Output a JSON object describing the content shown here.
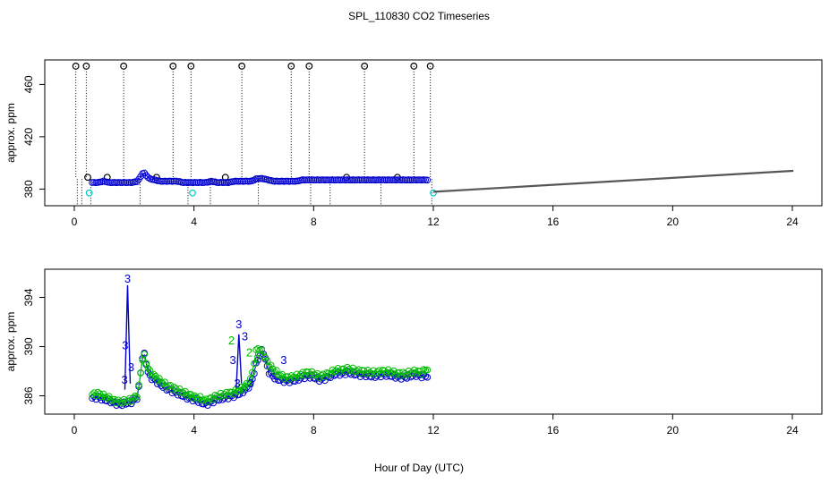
{
  "title": "SPL_110830  CO2 Timeseries",
  "xlabel": "Hour of Day (UTC)",
  "chart_data": [
    {
      "type": "scatter",
      "panel": "top",
      "ylabel": "approx. ppm",
      "xlim": [
        0,
        24
      ],
      "ylim": [
        370,
        476
      ],
      "xticks": [
        "0",
        "4",
        "8",
        "12",
        "16",
        "20",
        "24"
      ],
      "yticks": [
        "380",
        "420",
        "460"
      ],
      "grid": false,
      "series": [
        {
          "color": "#000000",
          "marker": "open-circle",
          "x": [
            0.05,
            0.1,
            0.25,
            0.4,
            0.45,
            0.55,
            1.1,
            1.65,
            2.2,
            2.75,
            3.3,
            3.8,
            3.9,
            4.55,
            5.05,
            5.6,
            6.15,
            7.25,
            7.85,
            7.9,
            8.55,
            9.1,
            9.7,
            10.25,
            10.8,
            11.35,
            11.9,
            11.95
          ],
          "y": [
            474,
            350,
            350,
            474,
            389,
            350,
            389,
            474,
            350,
            389,
            474,
            350,
            474,
            350,
            389,
            474,
            350,
            474,
            474,
            350,
            350,
            389,
            474,
            350,
            389,
            474,
            474,
            350
          ]
        },
        {
          "color": "#0000cc",
          "marker": "open-circle",
          "x_start": 0.6,
          "x_end": 11.8,
          "y": [
            385,
            385,
            386,
            385,
            385,
            385,
            385,
            385,
            386,
            393,
            388,
            387,
            386,
            386,
            386,
            386,
            385,
            385,
            385,
            385,
            385,
            386,
            385,
            385,
            385,
            386,
            386,
            386,
            386,
            388,
            388,
            387,
            386,
            386,
            386,
            386,
            386,
            387,
            387,
            387,
            387,
            387,
            387,
            387,
            387,
            387,
            387,
            387,
            387,
            387,
            387,
            387,
            387,
            387,
            387,
            387,
            387,
            387,
            387,
            387
          ]
        },
        {
          "color": "#00cccc",
          "marker": "open-circle",
          "x": [
            0.5,
            3.95,
            12.0
          ],
          "y": [
            377,
            377,
            377
          ]
        },
        {
          "color": "#555555",
          "marker": "dot",
          "x_start": 12.0,
          "x_end": 24.0,
          "y_start": 378,
          "y_end": 394
        }
      ]
    },
    {
      "type": "scatter",
      "panel": "bottom",
      "ylabel": "approx. ppm",
      "xlim": [
        0,
        24
      ],
      "ylim": [
        384.8,
        396
      ],
      "xticks": [
        "0",
        "4",
        "8",
        "12",
        "16",
        "20",
        "24"
      ],
      "yticks": [
        "386",
        "390",
        "394"
      ],
      "grid": false,
      "series": [
        {
          "color": "#0000cc",
          "marker": "open-circle",
          "x_start": 0.6,
          "x_end": 11.8,
          "y": [
            385.8,
            385.9,
            385.7,
            385.6,
            385.4,
            385.3,
            385.4,
            385.5,
            385.9,
            389.7,
            387.6,
            387.3,
            386.9,
            386.6,
            386.4,
            386.2,
            386.0,
            385.8,
            385.7,
            385.5,
            385.3,
            385.5,
            385.7,
            385.8,
            385.9,
            386.0,
            386.2,
            386.5,
            387.0,
            388.8,
            389.8,
            388.0,
            387.5,
            387.3,
            387.2,
            387.2,
            387.3,
            387.5,
            387.6,
            387.5,
            387.3,
            387.4,
            387.6,
            387.8,
            387.8,
            387.9,
            387.8,
            387.7,
            387.7,
            387.6,
            387.6,
            387.7,
            387.7,
            387.6,
            387.5,
            387.5,
            387.6,
            387.7,
            387.6,
            387.6
          ],
          "spikes": [
            {
              "x": 1.78,
              "y": 395.0
            },
            {
              "x": 5.5,
              "y": 391.0
            }
          ]
        },
        {
          "color": "#00bb00",
          "marker": "open-circle",
          "x_start": 0.6,
          "x_end": 11.8,
          "y": [
            386.1,
            386.2,
            386.0,
            385.8,
            385.6,
            385.5,
            385.6,
            385.7,
            386.1,
            389.5,
            388.0,
            387.6,
            387.2,
            386.9,
            386.7,
            386.5,
            386.3,
            386.1,
            385.9,
            385.8,
            385.6,
            385.8,
            386.0,
            386.1,
            386.2,
            386.3,
            386.5,
            386.8,
            387.4,
            390.0,
            389.5,
            388.6,
            388.1,
            387.7,
            387.5,
            387.5,
            387.6,
            387.8,
            387.9,
            387.8,
            387.6,
            387.7,
            387.9,
            388.1,
            388.1,
            388.2,
            388.1,
            388.0,
            388.0,
            387.9,
            387.9,
            388.0,
            388.0,
            387.9,
            387.8,
            387.8,
            387.9,
            388.0,
            387.9,
            388.2
          ]
        }
      ],
      "annotations": [
        {
          "text": "3",
          "color": "#0000cc",
          "x": 1.78,
          "y": 395.2
        },
        {
          "text": "3",
          "color": "#0000cc",
          "x": 1.7,
          "y": 389.8
        },
        {
          "text": "3",
          "color": "#0000cc",
          "x": 1.68,
          "y": 387.0
        },
        {
          "text": "3",
          "color": "#0000cc",
          "x": 1.9,
          "y": 388.0
        },
        {
          "text": "2",
          "color": "#00bb00",
          "x": 5.25,
          "y": 390.2
        },
        {
          "text": "3",
          "color": "#0000cc",
          "x": 5.5,
          "y": 391.5
        },
        {
          "text": "3",
          "color": "#0000cc",
          "x": 5.7,
          "y": 390.5
        },
        {
          "text": "2",
          "color": "#00bb00",
          "x": 5.85,
          "y": 389.2
        },
        {
          "text": "2",
          "color": "#00bb00",
          "x": 6.1,
          "y": 388.7
        },
        {
          "text": "3",
          "color": "#0000cc",
          "x": 5.3,
          "y": 388.6
        },
        {
          "text": "3",
          "color": "#0000cc",
          "x": 5.45,
          "y": 386.7
        },
        {
          "text": "3",
          "color": "#0000cc",
          "x": 5.9,
          "y": 386.7
        },
        {
          "text": "3",
          "color": "#0000cc",
          "x": 7.0,
          "y": 388.6
        }
      ]
    }
  ]
}
